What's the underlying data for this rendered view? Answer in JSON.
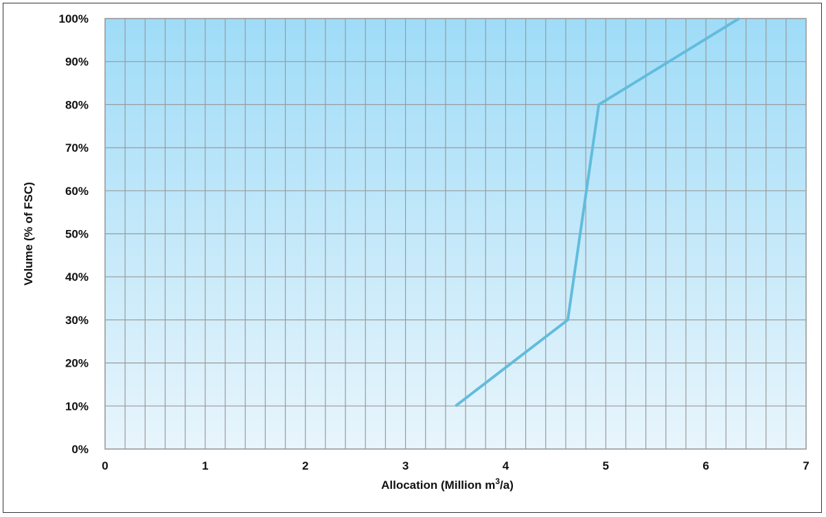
{
  "chart_data": {
    "type": "line",
    "title": "",
    "xlabel_main": "Allocation (Million m",
    "xlabel_sup": "3",
    "xlabel_tail": "/a)",
    "ylabel": "Volume (% of FSC)",
    "xlim": [
      0,
      7
    ],
    "ylim": [
      0,
      100
    ],
    "x_ticks": [
      "0",
      "1",
      "2",
      "3",
      "4",
      "5",
      "6",
      "7"
    ],
    "y_ticks": [
      "0%",
      "10%",
      "20%",
      "30%",
      "40%",
      "50%",
      "60%",
      "70%",
      "80%",
      "90%",
      "100%"
    ],
    "minor_x_step": 0.2,
    "grid": true,
    "series": [
      {
        "points": [
          [
            3.5,
            10
          ],
          [
            4.62,
            30
          ],
          [
            4.93,
            80
          ],
          [
            6.33,
            100
          ]
        ],
        "color": "#62bcdd"
      }
    ],
    "background_gradient": [
      "#9fdcf8",
      "#e8f5fc"
    ],
    "grid_color": "#9a9a9a"
  }
}
